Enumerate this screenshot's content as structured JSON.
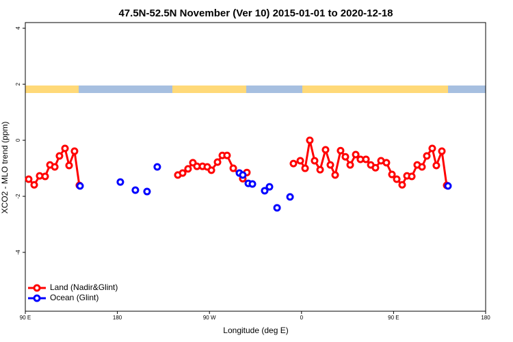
{
  "chart_data": {
    "type": "line",
    "title": "47.5N-52.5N November (Ver 10)   2015-01-01 to 2020-12-18",
    "x_label": "Longitude (deg E)",
    "y_label": "XCO2 - MLO trend (ppm)",
    "xlim": [
      90,
      540
    ],
    "xticks": [
      {
        "value": 90,
        "label": "90 E"
      },
      {
        "value": 180,
        "label": "180"
      },
      {
        "value": 270,
        "label": "90 W"
      },
      {
        "value": 360,
        "label": "0"
      },
      {
        "value": 450,
        "label": "90 E"
      },
      {
        "value": 540,
        "label": "180"
      }
    ],
    "ylim": [
      -6.1,
      4.2
    ],
    "yticks": [
      -4,
      -2,
      0,
      2,
      4
    ],
    "legend": "bottom-left",
    "series": [
      {
        "name": "Land (Nadir&Glint)",
        "color": "#ff0000",
        "x": [
          93.3,
          98.7,
          104.0,
          109.4,
          114.1,
          118.8,
          123.4,
          128.8,
          132.8,
          138.1,
          142.8,
          null,
          239.1,
          243.8,
          249.1,
          253.8,
          257.8,
          263.2,
          267.9,
          271.9,
          277.9,
          282.6,
          287.2,
          293.3,
          302.6,
          306.6,
          null,
          352.1,
          358.8,
          363.5,
          368.1,
          372.8,
          378.2,
          383.5,
          388.2,
          392.9,
          398.2,
          402.9,
          407.6,
          413.0,
          417.6,
          423.0,
          427.7,
          432.3,
          437.7,
          443.0,
          448.4,
          453.1,
          458.4,
          463.1,
          467.8,
          473.1,
          477.8,
          482.5,
          487.8,
          491.8,
          497.2,
          501.9
        ],
        "values": [
          -1.39,
          -1.59,
          -1.27,
          -1.29,
          -0.88,
          -0.95,
          -0.56,
          -0.29,
          -0.9,
          -0.39,
          -1.61,
          null,
          -1.24,
          -1.17,
          -1.02,
          -0.8,
          -0.93,
          -0.93,
          -0.95,
          -1.07,
          -0.78,
          -0.54,
          -0.54,
          -1.0,
          -1.37,
          -1.15,
          null,
          -0.83,
          -0.73,
          -1.0,
          0.0,
          -0.73,
          -1.05,
          -0.34,
          -0.88,
          -1.24,
          -0.37,
          -0.59,
          -0.88,
          -0.51,
          -0.68,
          -0.68,
          -0.88,
          -0.98,
          -0.73,
          -0.8,
          -1.22,
          -1.39,
          -1.59,
          -1.27,
          -1.29,
          -0.88,
          -0.95,
          -0.56,
          -0.29,
          -0.9,
          -0.39,
          -1.61
        ]
      },
      {
        "name": "Ocean (Glint)",
        "color": "#0000ff",
        "x": [
          143.5,
          null,
          182.9,
          null,
          197.6,
          null,
          209.0,
          null,
          219.0,
          null,
          299.3,
          302.6,
          null,
          308.0,
          312.0,
          null,
          324.0,
          328.7,
          null,
          336.1,
          null,
          348.8,
          null,
          503.2
        ],
        "values": [
          -1.63,
          null,
          -1.49,
          null,
          -1.78,
          null,
          -1.83,
          null,
          -0.95,
          null,
          -1.17,
          -1.24,
          null,
          -1.54,
          -1.56,
          null,
          -1.8,
          -1.66,
          null,
          -2.41,
          null,
          -2.02,
          null,
          -1.63
        ]
      }
    ]
  }
}
